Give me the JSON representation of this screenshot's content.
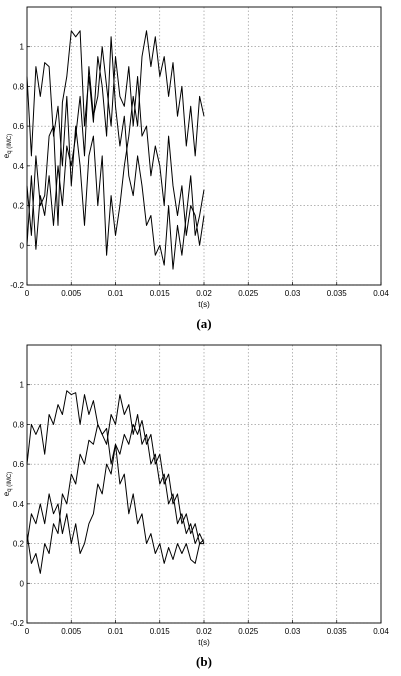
{
  "chart_data": [
    {
      "type": "line",
      "title": "",
      "caption": "(a)",
      "xlabel": "t(s)",
      "ylabel": "e",
      "ylabel_sub": "q (IMC)",
      "xlim": [
        0,
        0.04
      ],
      "ylim": [
        -0.2,
        1.2
      ],
      "xticks": [
        "0",
        "0.005",
        "0.01",
        "0.015",
        "0.02",
        "0.025",
        "0.03",
        "0.035",
        "0.04"
      ],
      "yticks": [
        "-0.2",
        "0",
        "0.2",
        "0.4",
        "0.6",
        "0.8",
        "1"
      ],
      "grid": true,
      "line_color": "#000000",
      "series": [
        {
          "x": [
            0,
            0.0005,
            0.001,
            0.0015,
            0.002,
            0.0025,
            0.003,
            0.0035,
            0.004,
            0.0045,
            0.005,
            0.0055,
            0.006,
            0.0065,
            0.007,
            0.0075,
            0.008,
            0.0085,
            0.009,
            0.0095,
            0.01,
            0.0105,
            0.011,
            0.0115,
            0.012,
            0.0125,
            0.013,
            0.0135,
            0.014,
            0.0145,
            0.015,
            0.0155,
            0.016,
            0.0165,
            0.017,
            0.0175,
            0.018,
            0.0185,
            0.019,
            0.0195,
            0.02
          ],
          "y": [
            0.3,
            0.05,
            0.45,
            0.2,
            0.25,
            0.55,
            0.6,
            0.1,
            0.72,
            0.85,
            1.08,
            1.05,
            1.08,
            0.6,
            0.85,
            0.62,
            0.95,
            0.8,
            0.55,
            1.05,
            0.7,
            0.5,
            0.65,
            0.35,
            0.25,
            0.45,
            0.3,
            0.1,
            0.15,
            -0.05,
            0.0,
            -0.1,
            0.2,
            -0.12,
            0.1,
            -0.05,
            0.15,
            0.35,
            0.05,
            0.15,
            0.28
          ]
        },
        {
          "x": [
            0,
            0.0005,
            0.001,
            0.0015,
            0.002,
            0.0025,
            0.003,
            0.0035,
            0.004,
            0.0045,
            0.005,
            0.0055,
            0.006,
            0.0065,
            0.007,
            0.0075,
            0.008,
            0.0085,
            0.009,
            0.0095,
            0.01,
            0.0105,
            0.011,
            0.0115,
            0.012,
            0.0125,
            0.013,
            0.0135,
            0.014,
            0.0145,
            0.015,
            0.0155,
            0.016,
            0.0165,
            0.017,
            0.0175,
            0.018,
            0.0185,
            0.019,
            0.0195,
            0.02
          ],
          "y": [
            0.85,
            0.45,
            0.9,
            0.75,
            0.92,
            0.9,
            0.55,
            0.7,
            0.4,
            0.75,
            0.3,
            0.6,
            0.4,
            0.1,
            0.45,
            0.55,
            0.2,
            0.45,
            -0.05,
            0.25,
            0.05,
            0.2,
            0.4,
            0.55,
            0.75,
            0.6,
            0.95,
            1.08,
            0.9,
            1.05,
            0.85,
            0.95,
            0.75,
            0.92,
            0.65,
            0.8,
            0.5,
            0.7,
            0.45,
            0.75,
            0.65
          ]
        },
        {
          "x": [
            0,
            0.0005,
            0.001,
            0.0015,
            0.002,
            0.0025,
            0.003,
            0.0035,
            0.004,
            0.0045,
            0.005,
            0.0055,
            0.006,
            0.0065,
            0.007,
            0.0075,
            0.008,
            0.0085,
            0.009,
            0.0095,
            0.01,
            0.0105,
            0.011,
            0.0115,
            0.012,
            0.0125,
            0.013,
            0.0135,
            0.014,
            0.0145,
            0.015,
            0.0155,
            0.016,
            0.0165,
            0.017,
            0.0175,
            0.018,
            0.0185,
            0.019,
            0.0195,
            0.02
          ],
          "y": [
            0.0,
            0.35,
            -0.02,
            0.25,
            0.15,
            0.35,
            0.1,
            0.4,
            0.2,
            0.5,
            0.4,
            0.55,
            0.75,
            0.45,
            0.9,
            0.65,
            0.75,
            1.0,
            0.8,
            0.6,
            0.95,
            0.75,
            0.7,
            0.9,
            0.6,
            0.85,
            0.55,
            0.6,
            0.35,
            0.5,
            0.4,
            0.2,
            0.55,
            0.3,
            0.15,
            0.3,
            0.05,
            0.2,
            0.15,
            0.0,
            0.15
          ]
        }
      ]
    },
    {
      "type": "line",
      "title": "",
      "caption": "(b)",
      "xlabel": "t(s)",
      "ylabel": "e",
      "ylabel_sub": "q (IMC)",
      "xlim": [
        0,
        0.04
      ],
      "ylim": [
        -0.2,
        1.2
      ],
      "xticks": [
        "0",
        "0.005",
        "0.01",
        "0.015",
        "0.02",
        "0.025",
        "0.03",
        "0.035",
        "0.04"
      ],
      "yticks": [
        "-0.2",
        "0",
        "0.2",
        "0.4",
        "0.6",
        "0.8",
        "1"
      ],
      "grid": true,
      "line_color": "#000000",
      "series": [
        {
          "x": [
            0,
            0.0005,
            0.001,
            0.0015,
            0.002,
            0.0025,
            0.003,
            0.0035,
            0.004,
            0.0045,
            0.005,
            0.0055,
            0.006,
            0.0065,
            0.007,
            0.0075,
            0.008,
            0.0085,
            0.009,
            0.0095,
            0.01,
            0.0105,
            0.011,
            0.0115,
            0.012,
            0.0125,
            0.013,
            0.0135,
            0.014,
            0.0145,
            0.015,
            0.0155,
            0.016,
            0.0165,
            0.017,
            0.0175,
            0.018,
            0.0185,
            0.019,
            0.0195,
            0.02
          ],
          "y": [
            0.6,
            0.8,
            0.75,
            0.8,
            0.65,
            0.85,
            0.8,
            0.9,
            0.85,
            0.97,
            0.95,
            0.96,
            0.8,
            0.95,
            0.85,
            0.92,
            0.8,
            0.75,
            0.78,
            0.6,
            0.7,
            0.5,
            0.55,
            0.35,
            0.45,
            0.3,
            0.35,
            0.2,
            0.25,
            0.15,
            0.2,
            0.1,
            0.18,
            0.12,
            0.2,
            0.15,
            0.2,
            0.12,
            0.1,
            0.2,
            0.22
          ]
        },
        {
          "x": [
            0,
            0.0005,
            0.001,
            0.0015,
            0.002,
            0.0025,
            0.003,
            0.0035,
            0.004,
            0.0045,
            0.005,
            0.0055,
            0.006,
            0.0065,
            0.007,
            0.0075,
            0.008,
            0.0085,
            0.009,
            0.0095,
            0.01,
            0.0105,
            0.011,
            0.0115,
            0.012,
            0.0125,
            0.013,
            0.0135,
            0.014,
            0.0145,
            0.015,
            0.0155,
            0.016,
            0.0165,
            0.017,
            0.0175,
            0.018,
            0.0185,
            0.019,
            0.0195,
            0.02
          ],
          "y": [
            0.25,
            0.1,
            0.15,
            0.05,
            0.2,
            0.15,
            0.3,
            0.25,
            0.45,
            0.4,
            0.55,
            0.5,
            0.65,
            0.6,
            0.72,
            0.7,
            0.8,
            0.75,
            0.7,
            0.85,
            0.8,
            0.95,
            0.85,
            0.9,
            0.75,
            0.85,
            0.7,
            0.75,
            0.6,
            0.65,
            0.5,
            0.55,
            0.4,
            0.45,
            0.3,
            0.35,
            0.25,
            0.3,
            0.2,
            0.25,
            0.2
          ]
        },
        {
          "x": [
            0,
            0.0005,
            0.001,
            0.0015,
            0.002,
            0.0025,
            0.003,
            0.0035,
            0.004,
            0.0045,
            0.005,
            0.0055,
            0.006,
            0.0065,
            0.007,
            0.0075,
            0.008,
            0.0085,
            0.009,
            0.0095,
            0.01,
            0.0105,
            0.011,
            0.0115,
            0.012,
            0.0125,
            0.013,
            0.0135,
            0.014,
            0.0145,
            0.015,
            0.0155,
            0.016,
            0.0165,
            0.017,
            0.0175,
            0.018,
            0.0185,
            0.019,
            0.0195,
            0.02
          ],
          "y": [
            0.2,
            0.35,
            0.3,
            0.4,
            0.3,
            0.45,
            0.35,
            0.4,
            0.25,
            0.35,
            0.2,
            0.3,
            0.15,
            0.2,
            0.3,
            0.35,
            0.5,
            0.45,
            0.6,
            0.55,
            0.7,
            0.65,
            0.75,
            0.7,
            0.8,
            0.75,
            0.82,
            0.7,
            0.75,
            0.6,
            0.65,
            0.5,
            0.55,
            0.4,
            0.45,
            0.3,
            0.35,
            0.25,
            0.3,
            0.2,
            0.2
          ]
        }
      ]
    }
  ]
}
